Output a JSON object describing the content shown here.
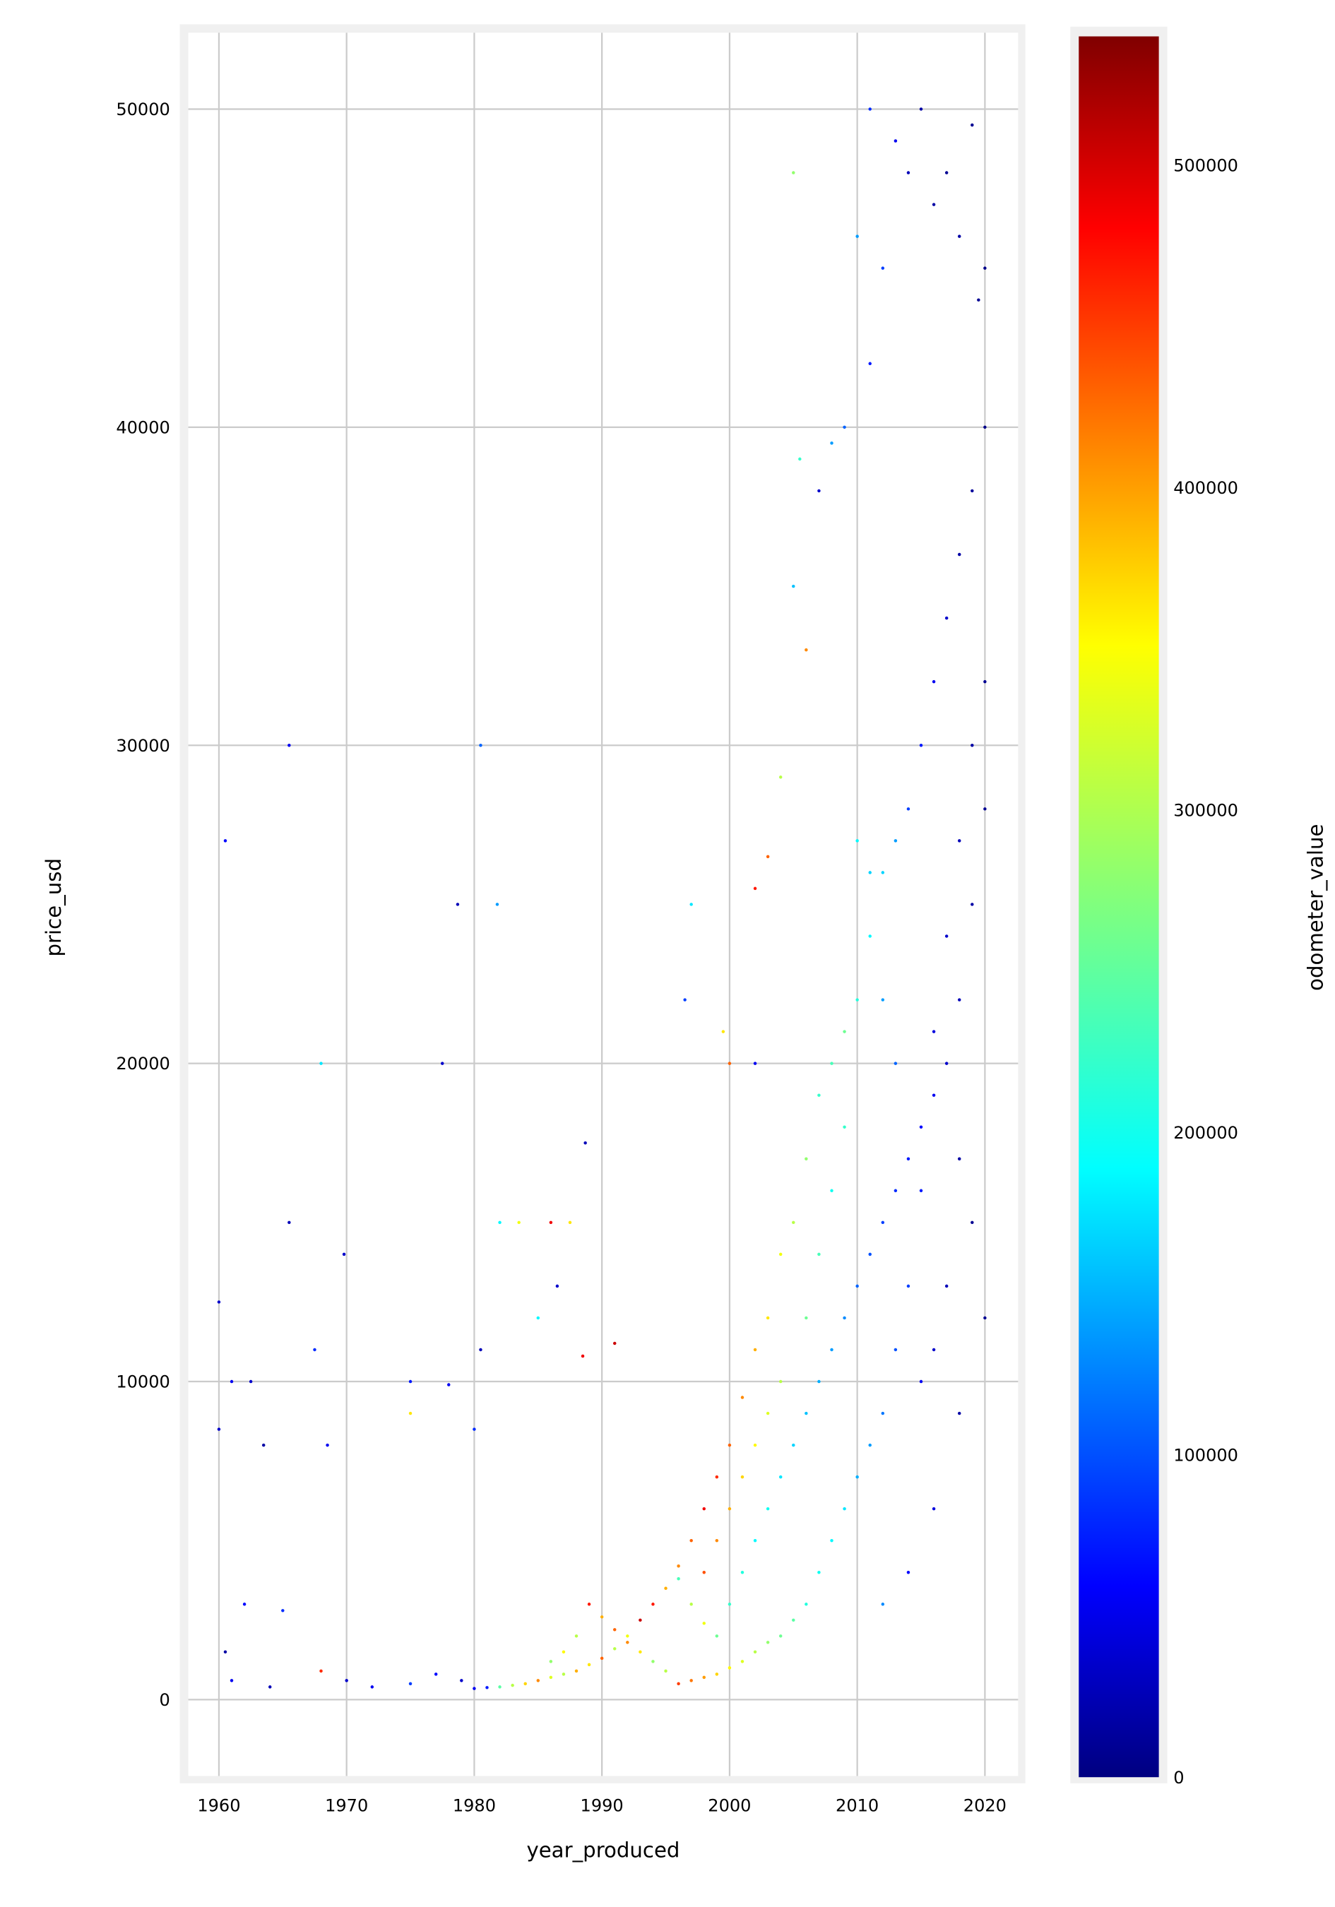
{
  "chart_data": {
    "type": "scatter",
    "title": "",
    "xlabel": "year_produced",
    "ylabel": "price_usd",
    "xlim": [
      1957.6,
      2022.6
    ],
    "ylim": [
      -2400,
      52400
    ],
    "xticks": [
      1960,
      1970,
      1980,
      1990,
      2000,
      2010,
      2020
    ],
    "yticks": [
      0,
      10000,
      20000,
      30000,
      40000,
      50000
    ],
    "grid": true,
    "colorbar": {
      "label": "odometer_value",
      "colormap": "jet",
      "range": [
        0,
        540000
      ],
      "ticks": [
        0,
        100000,
        200000,
        300000,
        400000,
        500000
      ]
    },
    "colors": {
      "frame": "#f0f0f0",
      "grid": "#cbcbcb"
    },
    "points_format": [
      "year_produced",
      "price_usd",
      "odometer_value"
    ],
    "points": [
      [
        1965.5,
        30000,
        60000
      ],
      [
        1980.5,
        30000,
        120000
      ],
      [
        1960.5,
        27000,
        70000
      ],
      [
        1978.7,
        25000,
        30000
      ],
      [
        1981.8,
        25000,
        150000
      ],
      [
        1968,
        20000,
        190000
      ],
      [
        1977.5,
        20000,
        40000
      ],
      [
        1965.5,
        15000,
        30000
      ],
      [
        1969.8,
        14000,
        40000
      ],
      [
        1960,
        12500,
        40000
      ],
      [
        1988.7,
        17500,
        30000
      ],
      [
        2005,
        48000,
        280000
      ],
      [
        2011,
        50000,
        90000
      ],
      [
        1961,
        10000,
        60000
      ],
      [
        1962.5,
        10000,
        40000
      ],
      [
        1967.5,
        11000,
        90000
      ],
      [
        1975,
        10000,
        80000
      ],
      [
        1978,
        9900,
        60000
      ],
      [
        1980.5,
        11000,
        30000
      ],
      [
        1960,
        8500,
        40000
      ],
      [
        1963.5,
        8000,
        20000
      ],
      [
        1968.5,
        8000,
        60000
      ],
      [
        1975,
        9000,
        350000
      ],
      [
        1980,
        8500,
        90000
      ],
      [
        1983.5,
        15000,
        330000
      ],
      [
        1986,
        15000,
        480000
      ],
      [
        1987.5,
        15000,
        350000
      ],
      [
        1982,
        15000,
        200000
      ],
      [
        1986.5,
        13000,
        40000
      ],
      [
        1985,
        12000,
        200000
      ],
      [
        1991,
        11200,
        500000
      ],
      [
        1988.5,
        10800,
        480000
      ],
      [
        1996.5,
        22000,
        100000
      ],
      [
        1997,
        25000,
        190000
      ],
      [
        1999.5,
        21000,
        350000
      ],
      [
        2000,
        20000,
        420000
      ],
      [
        2002,
        20000,
        60000
      ],
      [
        2002,
        25500,
        460000
      ],
      [
        2003,
        26500,
        420000
      ],
      [
        2004,
        29000,
        300000
      ],
      [
        2005,
        35000,
        170000
      ],
      [
        2005.5,
        39000,
        230000
      ],
      [
        2006,
        33000,
        400000
      ],
      [
        2007,
        38000,
        40000
      ],
      [
        2008,
        39500,
        150000
      ],
      [
        2009,
        40000,
        120000
      ],
      [
        2010,
        46000,
        150000
      ],
      [
        2011,
        42000,
        80000
      ],
      [
        2012,
        45000,
        100000
      ],
      [
        2013,
        49000,
        60000
      ],
      [
        2014,
        48000,
        30000
      ],
      [
        2015,
        50000,
        20000
      ],
      [
        2016,
        47000,
        20000
      ],
      [
        2017,
        48000,
        10000
      ],
      [
        2018,
        46000,
        20000
      ],
      [
        2019,
        49500,
        10000
      ],
      [
        2019.5,
        44000,
        10000
      ],
      [
        2020,
        45000,
        5000
      ],
      [
        2020,
        40000,
        5000
      ],
      [
        2019,
        38000,
        15000
      ],
      [
        2018,
        36000,
        20000
      ],
      [
        2017,
        34000,
        40000
      ],
      [
        2016,
        32000,
        60000
      ],
      [
        2015,
        30000,
        80000
      ],
      [
        2014,
        28000,
        100000
      ],
      [
        2013,
        27000,
        150000
      ],
      [
        2012,
        26000,
        180000
      ],
      [
        2011,
        24000,
        200000
      ],
      [
        2010,
        22000,
        220000
      ],
      [
        2009,
        21000,
        260000
      ],
      [
        2008,
        20000,
        240000
      ],
      [
        2007,
        19000,
        230000
      ],
      [
        2006,
        17000,
        280000
      ],
      [
        2005,
        15000,
        300000
      ],
      [
        2004,
        14000,
        330000
      ],
      [
        2003,
        12000,
        350000
      ],
      [
        2002,
        11000,
        380000
      ],
      [
        2001,
        9500,
        400000
      ],
      [
        2000,
        8000,
        420000
      ],
      [
        1999,
        7000,
        450000
      ],
      [
        1998,
        6000,
        480000
      ],
      [
        1997,
        5000,
        420000
      ],
      [
        1996,
        4200,
        400000
      ],
      [
        1995,
        3500,
        380000
      ],
      [
        1994,
        3000,
        460000
      ],
      [
        1993,
        2500,
        500000
      ],
      [
        1992,
        2000,
        330000
      ],
      [
        1991,
        1600,
        300000
      ],
      [
        1990,
        1300,
        420000
      ],
      [
        1989,
        1100,
        350000
      ],
      [
        1988,
        900,
        380000
      ],
      [
        1987,
        800,
        300000
      ],
      [
        1986,
        700,
        320000
      ],
      [
        1985,
        600,
        400000
      ],
      [
        1984,
        500,
        360000
      ],
      [
        1983,
        450,
        300000
      ],
      [
        1982,
        400,
        250000
      ],
      [
        1981,
        380,
        80000
      ],
      [
        1980,
        350,
        60000
      ],
      [
        1979,
        600,
        40000
      ],
      [
        1977,
        800,
        70000
      ],
      [
        1975,
        500,
        100000
      ],
      [
        1972,
        400,
        60000
      ],
      [
        1970,
        600,
        40000
      ],
      [
        1968,
        900,
        450000
      ],
      [
        1964,
        400,
        30000
      ],
      [
        1961,
        600,
        60000
      ],
      [
        1960.5,
        1500,
        20000
      ],
      [
        1962,
        3000,
        70000
      ],
      [
        1965,
        2800,
        90000
      ],
      [
        1996,
        3800,
        240000
      ],
      [
        1997,
        3000,
        300000
      ],
      [
        1998,
        2400,
        330000
      ],
      [
        1999,
        2000,
        260000
      ],
      [
        2000,
        3000,
        230000
      ],
      [
        2001,
        4000,
        220000
      ],
      [
        2002,
        5000,
        200000
      ],
      [
        2003,
        6000,
        210000
      ],
      [
        2004,
        7000,
        190000
      ],
      [
        2005,
        8000,
        180000
      ],
      [
        2006,
        9000,
        170000
      ],
      [
        2007,
        10000,
        160000
      ],
      [
        2008,
        11000,
        150000
      ],
      [
        2009,
        12000,
        140000
      ],
      [
        2010,
        13000,
        120000
      ],
      [
        2011,
        14000,
        110000
      ],
      [
        2012,
        15000,
        100000
      ],
      [
        2013,
        16000,
        90000
      ],
      [
        2014,
        17000,
        80000
      ],
      [
        2015,
        18000,
        70000
      ],
      [
        2016,
        19000,
        60000
      ],
      [
        2017,
        20000,
        40000
      ],
      [
        2018,
        22000,
        30000
      ],
      [
        2019,
        25000,
        20000
      ],
      [
        2020,
        28000,
        10000
      ],
      [
        2020,
        32000,
        10000
      ],
      [
        2019,
        30000,
        20000
      ],
      [
        2018,
        27000,
        30000
      ],
      [
        2017,
        24000,
        40000
      ],
      [
        2016,
        21000,
        50000
      ],
      [
        2015,
        16000,
        80000
      ],
      [
        2014,
        13000,
        100000
      ],
      [
        2013,
        11000,
        110000
      ],
      [
        2012,
        9000,
        130000
      ],
      [
        2011,
        8000,
        150000
      ],
      [
        2010,
        7000,
        160000
      ],
      [
        2009,
        6000,
        190000
      ],
      [
        2008,
        5000,
        200000
      ],
      [
        2007,
        4000,
        210000
      ],
      [
        2006,
        3000,
        220000
      ],
      [
        2005,
        2500,
        250000
      ],
      [
        2004,
        2000,
        260000
      ],
      [
        2003,
        1800,
        280000
      ],
      [
        2002,
        1500,
        300000
      ],
      [
        2001,
        1200,
        320000
      ],
      [
        2000,
        1000,
        340000
      ],
      [
        1999,
        800,
        360000
      ],
      [
        1998,
        700,
        390000
      ],
      [
        1997,
        600,
        410000
      ],
      [
        1996,
        500,
        440000
      ],
      [
        1995,
        900,
        300000
      ],
      [
        1994,
        1200,
        280000
      ],
      [
        1993,
        1500,
        350000
      ],
      [
        1992,
        1800,
        400000
      ],
      [
        1991,
        2200,
        420000
      ],
      [
        1990,
        2600,
        380000
      ],
      [
        1989,
        3000,
        460000
      ],
      [
        1988,
        2000,
        300000
      ],
      [
        1987,
        1500,
        340000
      ],
      [
        1986,
        1200,
        280000
      ],
      [
        2012,
        3000,
        140000
      ],
      [
        2014,
        4000,
        70000
      ],
      [
        2016,
        6000,
        50000
      ],
      [
        2018,
        9000,
        20000
      ],
      [
        2020,
        12000,
        10000
      ],
      [
        2019,
        15000,
        10000
      ],
      [
        2018,
        17000,
        20000
      ],
      [
        2017,
        13000,
        30000
      ],
      [
        2016,
        11000,
        40000
      ],
      [
        2015,
        10000,
        60000
      ],
      [
        2013,
        20000,
        120000
      ],
      [
        2012,
        22000,
        150000
      ],
      [
        2011,
        26000,
        180000
      ],
      [
        2010,
        27000,
        200000
      ],
      [
        2009,
        18000,
        230000
      ],
      [
        2008,
        16000,
        210000
      ],
      [
        2007,
        14000,
        240000
      ],
      [
        2006,
        12000,
        260000
      ],
      [
        2004,
        10000,
        300000
      ],
      [
        2003,
        9000,
        320000
      ],
      [
        2002,
        8000,
        340000
      ],
      [
        2001,
        7000,
        360000
      ],
      [
        2000,
        6000,
        380000
      ],
      [
        1999,
        5000,
        400000
      ],
      [
        1998,
        4000,
        430000
      ]
    ]
  }
}
